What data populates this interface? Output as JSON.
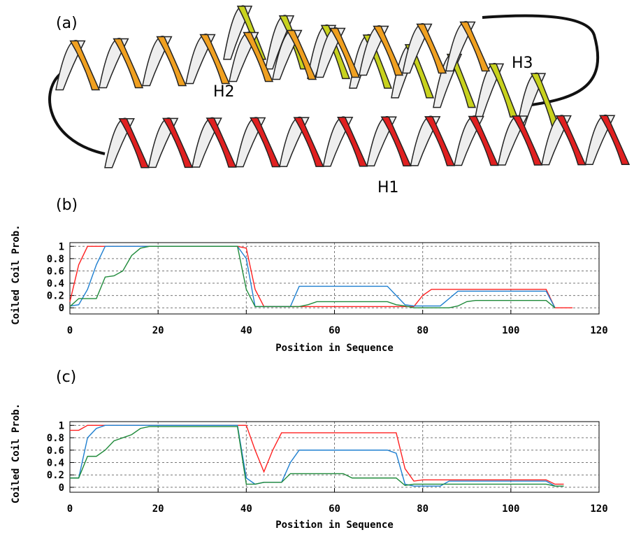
{
  "figure": {
    "panel_label": "(a)",
    "helix_labels": [
      "H2",
      "H3",
      "H1"
    ]
  },
  "chart_data": [
    {
      "type": "line",
      "panel_label": "(b)",
      "y_label": "Coiled Coil Prob.",
      "x_label": "Position in Sequence",
      "x": [
        0,
        2,
        4,
        6,
        8,
        10,
        12,
        14,
        16,
        18,
        20,
        22,
        24,
        26,
        28,
        30,
        32,
        34,
        36,
        38,
        40,
        42,
        44,
        46,
        48,
        50,
        52,
        54,
        56,
        58,
        60,
        62,
        64,
        66,
        68,
        70,
        72,
        74,
        76,
        78,
        80,
        82,
        84,
        86,
        88,
        90,
        92,
        94,
        96,
        98,
        100,
        102,
        104,
        106,
        108,
        110,
        112,
        114
      ],
      "xlim": [
        0,
        120
      ],
      "xticks": [
        0,
        20,
        40,
        60,
        80,
        100,
        120
      ],
      "ylim": [
        -0.1,
        1.06
      ],
      "yticks": [
        0,
        0.2,
        0.4,
        0.6,
        0.8,
        1
      ],
      "grid": true,
      "series": [
        {
          "color": "#ff2020",
          "values": [
            0.1,
            0.7,
            1,
            1,
            1,
            1,
            1,
            1,
            1,
            1,
            1,
            1,
            1,
            1,
            1,
            1,
            1,
            1,
            1,
            1,
            0.97,
            0.3,
            0.02,
            0.02,
            0.02,
            0.02,
            0.02,
            0.02,
            0.02,
            0.02,
            0.02,
            0.02,
            0.02,
            0.02,
            0.02,
            0.02,
            0.02,
            0.02,
            0.02,
            0.02,
            0.2,
            0.3,
            0.3,
            0.3,
            0.3,
            0.3,
            0.3,
            0.3,
            0.3,
            0.3,
            0.3,
            0.3,
            0.3,
            0.3,
            0.3,
            0,
            0,
            0
          ]
        },
        {
          "color": "#1e7fd0",
          "values": [
            0.03,
            0.05,
            0.3,
            0.7,
            1,
            1,
            1,
            1,
            1,
            1,
            1,
            1,
            1,
            1,
            1,
            1,
            1,
            1,
            1,
            1,
            0.8,
            0.02,
            0.02,
            0.02,
            0.02,
            0.02,
            0.35,
            0.35,
            0.35,
            0.35,
            0.35,
            0.35,
            0.35,
            0.35,
            0.35,
            0.35,
            0.35,
            0.2,
            0.05,
            0.03,
            0.03,
            0.03,
            0.03,
            0.15,
            0.27,
            0.27,
            0.27,
            0.27,
            0.27,
            0.27,
            0.27,
            0.27,
            0.27,
            0.27,
            0.27,
            0,
            null,
            null
          ]
        },
        {
          "color": "#1f8a3a",
          "values": [
            0.02,
            0.15,
            0.15,
            0.15,
            0.5,
            0.52,
            0.6,
            0.85,
            0.97,
            1,
            1,
            1,
            1,
            1,
            1,
            1,
            1,
            1,
            1,
            1,
            0.3,
            0.02,
            0.02,
            0.02,
            0.02,
            0.02,
            0.02,
            0.05,
            0.1,
            0.1,
            0.1,
            0.1,
            0.1,
            0.1,
            0.1,
            0.1,
            0.1,
            0.05,
            0.03,
            0,
            0,
            0,
            0,
            0,
            0.03,
            0.1,
            0.12,
            0.12,
            0.12,
            0.12,
            0.12,
            0.12,
            0.12,
            0.12,
            0.12,
            0,
            null,
            null
          ]
        }
      ]
    },
    {
      "type": "line",
      "panel_label": "(c)",
      "y_label": "Coiled Coil Prob.",
      "x_label": "Position in Sequence",
      "x": [
        0,
        2,
        4,
        6,
        8,
        10,
        12,
        14,
        16,
        18,
        20,
        22,
        24,
        26,
        28,
        30,
        32,
        34,
        36,
        38,
        40,
        42,
        44,
        46,
        48,
        50,
        52,
        54,
        56,
        58,
        60,
        62,
        64,
        66,
        68,
        70,
        72,
        74,
        76,
        78,
        80,
        82,
        84,
        86,
        88,
        90,
        92,
        94,
        96,
        98,
        100,
        102,
        104,
        106,
        108,
        110,
        112,
        114
      ],
      "xlim": [
        0,
        120
      ],
      "xticks": [
        0,
        20,
        40,
        60,
        80,
        100,
        120
      ],
      "ylim": [
        -0.08,
        1.06
      ],
      "yticks": [
        0,
        0.2,
        0.4,
        0.6,
        0.8,
        1
      ],
      "grid": true,
      "series": [
        {
          "color": "#ff2020",
          "values": [
            0.92,
            0.92,
            1,
            1,
            1,
            1,
            1,
            1,
            1,
            1,
            1,
            1,
            1,
            1,
            1,
            1,
            1,
            1,
            1,
            1,
            1,
            0.6,
            0.25,
            0.6,
            0.88,
            0.88,
            0.88,
            0.88,
            0.88,
            0.88,
            0.88,
            0.88,
            0.88,
            0.88,
            0.88,
            0.88,
            0.88,
            0.88,
            0.3,
            0.1,
            0.12,
            0.12,
            0.12,
            0.12,
            0.12,
            0.12,
            0.12,
            0.12,
            0.12,
            0.12,
            0.12,
            0.12,
            0.12,
            0.12,
            0.12,
            0.05,
            0.05,
            null
          ]
        },
        {
          "color": "#1e7fd0",
          "values": [
            0.15,
            0.15,
            0.8,
            0.95,
            1,
            1,
            1,
            1,
            1,
            1,
            1,
            1,
            1,
            1,
            1,
            1,
            1,
            1,
            1,
            1,
            0.15,
            0.05,
            0.08,
            0.08,
            0.08,
            0.4,
            0.6,
            0.6,
            0.6,
            0.6,
            0.6,
            0.6,
            0.6,
            0.6,
            0.6,
            0.6,
            0.6,
            0.55,
            0.05,
            0.02,
            0.02,
            0.02,
            0.02,
            0.1,
            0.1,
            0.1,
            0.1,
            0.1,
            0.1,
            0.1,
            0.1,
            0.1,
            0.1,
            0.1,
            0.1,
            0.02,
            0.02,
            null
          ]
        },
        {
          "color": "#1f8a3a",
          "values": [
            0.15,
            0.15,
            0.5,
            0.5,
            0.6,
            0.75,
            0.8,
            0.85,
            0.95,
            0.98,
            0.98,
            0.98,
            0.98,
            0.98,
            0.98,
            0.98,
            0.98,
            0.98,
            0.98,
            0.98,
            0.05,
            0.05,
            0.08,
            0.08,
            0.08,
            0.22,
            0.22,
            0.22,
            0.22,
            0.22,
            0.22,
            0.22,
            0.15,
            0.15,
            0.15,
            0.15,
            0.15,
            0.15,
            0.03,
            0.05,
            0.05,
            0.05,
            0.05,
            0.05,
            0.05,
            0.05,
            0.05,
            0.05,
            0.05,
            0.05,
            0.05,
            0.05,
            0.05,
            0.05,
            0.05,
            0.02,
            0.02,
            null
          ]
        }
      ]
    }
  ]
}
